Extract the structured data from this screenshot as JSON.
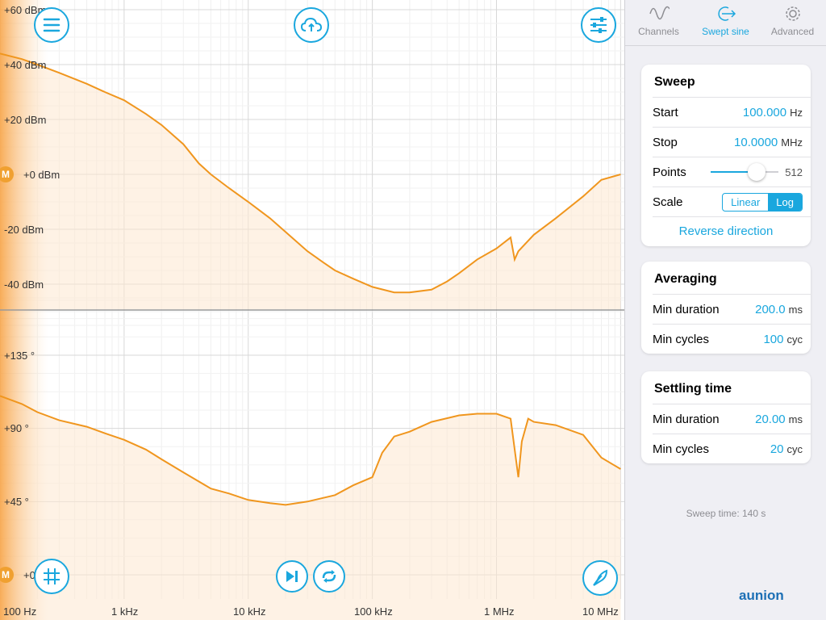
{
  "plot": {
    "magnitude_labels": [
      "+60 dBm",
      "+40 dBm",
      "+20 dBm",
      "+0 dBm",
      "-20 dBm",
      "-40 dBm"
    ],
    "phase_labels": [
      "+135 °",
      "+90 °",
      "+45 °",
      "+0"
    ],
    "frequency_labels": [
      "100 Hz",
      "1 kHz",
      "10 kHz",
      "100 kHz",
      "1 MHz",
      "10 MHz"
    ],
    "marker_label": "M",
    "curve_color": "#f0961e"
  },
  "chart_data": {
    "type": "line",
    "magnitude": {
      "ylabel": "",
      "ylim": [
        -50,
        60
      ],
      "x_scale": "log",
      "xlim_hz": [
        100,
        10000000
      ],
      "x": [
        100,
        150,
        200,
        300,
        500,
        700,
        1000,
        1500,
        2000,
        3000,
        4000,
        5000,
        7000,
        10000,
        15000,
        20000,
        30000,
        40000,
        50000,
        70000,
        100000,
        150000,
        200000,
        300000,
        400000,
        500000,
        700000,
        1000000,
        1300000,
        1400000,
        1500000,
        2000000,
        3000000,
        5000000,
        7000000,
        10000000
      ],
      "y": [
        44,
        42,
        40,
        37,
        33,
        30,
        27,
        22,
        18,
        11,
        4,
        0,
        -5,
        -10,
        -16,
        -21,
        -28,
        -32,
        -35,
        -38,
        -41,
        -43,
        -43,
        -42,
        -39,
        -36,
        -31,
        -27,
        -23,
        -31,
        -28,
        -22,
        -16,
        -8,
        -2,
        0
      ]
    },
    "phase": {
      "ylabel": "",
      "ylim": [
        0,
        160
      ],
      "x_scale": "log",
      "xlim_hz": [
        100,
        10000000
      ],
      "x": [
        100,
        150,
        200,
        300,
        500,
        700,
        1000,
        1500,
        2000,
        3000,
        5000,
        7000,
        10000,
        15000,
        20000,
        30000,
        50000,
        70000,
        100000,
        120000,
        150000,
        200000,
        300000,
        500000,
        700000,
        1000000,
        1300000,
        1500000,
        1600000,
        1800000,
        2000000,
        3000000,
        5000000,
        7000000,
        10000000
      ],
      "y": [
        110,
        105,
        100,
        95,
        91,
        87,
        83,
        77,
        71,
        63,
        53,
        50,
        46,
        44,
        43,
        45,
        49,
        55,
        60,
        75,
        85,
        88,
        94,
        98,
        99,
        99,
        96,
        60,
        82,
        96,
        94,
        92,
        86,
        72,
        65
      ]
    }
  },
  "toolbar": {
    "menu_icon": "menu-icon",
    "upload_icon": "cloud-upload-icon",
    "settings_icon": "sliders-icon",
    "grid_icon": "grid-icon",
    "play_next_icon": "skip-forward-icon",
    "repeat_icon": "repeat-icon",
    "probe_icon": "probe-icon"
  },
  "sidebar": {
    "tabs": [
      {
        "label": "Channels",
        "icon": "sine-wave-icon"
      },
      {
        "label": "Swept sine",
        "icon": "sweep-arrow-icon"
      },
      {
        "label": "Advanced",
        "icon": "gear-icon"
      }
    ],
    "sweep": {
      "title": "Sweep",
      "start_label": "Start",
      "start_value": "100.000",
      "start_unit": "Hz",
      "stop_label": "Stop",
      "stop_value": "10.0000",
      "stop_unit": "MHz",
      "points_label": "Points",
      "points_value": "512",
      "points_fraction": 0.73,
      "scale_label": "Scale",
      "scale_linear": "Linear",
      "scale_log": "Log",
      "reverse": "Reverse direction"
    },
    "averaging": {
      "title": "Averaging",
      "min_duration_label": "Min duration",
      "min_duration_value": "200.0",
      "min_duration_unit": "ms",
      "min_cycles_label": "Min cycles",
      "min_cycles_value": "100",
      "min_cycles_unit": "cyc"
    },
    "settling": {
      "title": "Settling time",
      "min_duration_label": "Min duration",
      "min_duration_value": "20.00",
      "min_duration_unit": "ms",
      "min_cycles_label": "Min cycles",
      "min_cycles_value": "20",
      "min_cycles_unit": "cyc"
    },
    "sweep_time": "Sweep time: 140 s"
  },
  "watermark": "aunion",
  "accent": "#1aa7de"
}
